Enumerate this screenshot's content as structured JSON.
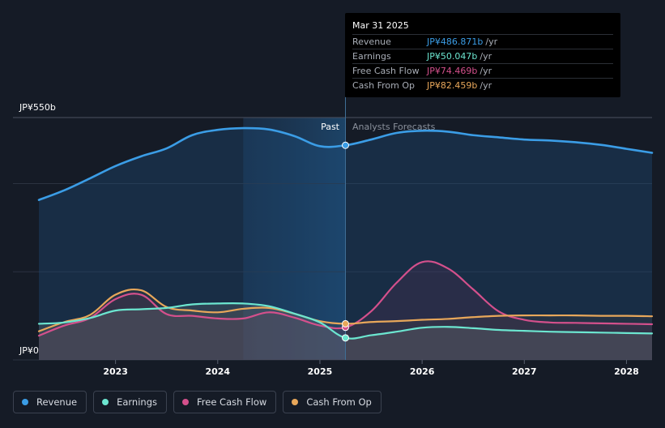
{
  "tooltip": {
    "date": "Mar 31 2025",
    "rows": [
      {
        "label": "Revenue",
        "value": "JP¥486.871b",
        "unit": "/yr",
        "color": "#3b9de6"
      },
      {
        "label": "Earnings",
        "value": "JP¥50.047b",
        "unit": "/yr",
        "color": "#6ce6d0"
      },
      {
        "label": "Free Cash Flow",
        "value": "JP¥74.469b",
        "unit": "/yr",
        "color": "#d4508c"
      },
      {
        "label": "Cash From Op",
        "value": "JP¥82.459b",
        "unit": "/yr",
        "color": "#e8a75a"
      }
    ]
  },
  "labels": {
    "past": "Past",
    "forecast": "Analysts Forecasts"
  },
  "legend": [
    {
      "label": "Revenue",
      "color": "#3b9de6",
      "icon": "revenue-dot-icon"
    },
    {
      "label": "Earnings",
      "color": "#6ce6d0",
      "icon": "earnings-dot-icon"
    },
    {
      "label": "Free Cash Flow",
      "color": "#d4508c",
      "icon": "free-cash-flow-dot-icon"
    },
    {
      "label": "Cash From Op",
      "color": "#e8a75a",
      "icon": "cash-from-op-dot-icon"
    }
  ],
  "chart_data": {
    "type": "line",
    "y_tick_labels": [
      "JP¥550b",
      "JP¥0"
    ],
    "ylim": [
      0,
      550
    ],
    "xlim": [
      2022.25,
      2028.25
    ],
    "x_tick_labels": [
      "2023",
      "2024",
      "2025",
      "2026",
      "2027",
      "2028"
    ],
    "x_ticks": [
      2023,
      2024,
      2025,
      2026,
      2027,
      2028
    ],
    "highlight_range": [
      2024.25,
      2025.25
    ],
    "divider_x": 2025.25,
    "grid": true,
    "legend_position": "bottom-left",
    "series": [
      {
        "name": "Revenue",
        "color": "#3b9de6",
        "fill": true,
        "points": [
          [
            2022.25,
            363
          ],
          [
            2022.5,
            385
          ],
          [
            2022.75,
            412
          ],
          [
            2023.0,
            440
          ],
          [
            2023.25,
            462
          ],
          [
            2023.5,
            480
          ],
          [
            2023.75,
            510
          ],
          [
            2024.0,
            522
          ],
          [
            2024.25,
            526
          ],
          [
            2024.5,
            523
          ],
          [
            2024.75,
            508
          ],
          [
            2025.0,
            485
          ],
          [
            2025.25,
            487
          ],
          [
            2025.5,
            500
          ],
          [
            2025.75,
            515
          ],
          [
            2026.0,
            520
          ],
          [
            2026.25,
            518
          ],
          [
            2026.5,
            510
          ],
          [
            2026.75,
            505
          ],
          [
            2027.0,
            500
          ],
          [
            2027.25,
            498
          ],
          [
            2027.5,
            494
          ],
          [
            2027.75,
            488
          ],
          [
            2028.0,
            479
          ],
          [
            2028.25,
            470
          ]
        ]
      },
      {
        "name": "Earnings",
        "color": "#6ce6d0",
        "fill": true,
        "points": [
          [
            2022.25,
            82
          ],
          [
            2022.5,
            85
          ],
          [
            2022.75,
            95
          ],
          [
            2023.0,
            112
          ],
          [
            2023.25,
            115
          ],
          [
            2023.5,
            118
          ],
          [
            2023.75,
            126
          ],
          [
            2024.0,
            128
          ],
          [
            2024.25,
            128
          ],
          [
            2024.5,
            122
          ],
          [
            2024.75,
            105
          ],
          [
            2025.0,
            85
          ],
          [
            2025.25,
            50
          ],
          [
            2025.5,
            56
          ],
          [
            2025.75,
            64
          ],
          [
            2026.0,
            73
          ],
          [
            2026.25,
            75
          ],
          [
            2026.5,
            72
          ],
          [
            2026.75,
            68
          ],
          [
            2027.0,
            66
          ],
          [
            2027.25,
            64
          ],
          [
            2027.5,
            63
          ],
          [
            2027.75,
            62
          ],
          [
            2028.0,
            61
          ],
          [
            2028.25,
            60
          ]
        ]
      },
      {
        "name": "Free Cash Flow",
        "color": "#d4508c",
        "fill": true,
        "points": [
          [
            2022.25,
            55
          ],
          [
            2022.5,
            78
          ],
          [
            2022.75,
            95
          ],
          [
            2023.0,
            138
          ],
          [
            2023.25,
            148
          ],
          [
            2023.5,
            104
          ],
          [
            2023.75,
            100
          ],
          [
            2024.0,
            94
          ],
          [
            2024.25,
            94
          ],
          [
            2024.5,
            108
          ],
          [
            2024.75,
            96
          ],
          [
            2025.0,
            78
          ],
          [
            2025.25,
            74
          ],
          [
            2025.5,
            110
          ],
          [
            2025.75,
            175
          ],
          [
            2026.0,
            222
          ],
          [
            2026.25,
            208
          ],
          [
            2026.5,
            160
          ],
          [
            2026.75,
            110
          ],
          [
            2027.0,
            91
          ],
          [
            2027.25,
            85
          ],
          [
            2027.5,
            84
          ],
          [
            2027.75,
            83
          ],
          [
            2028.0,
            82
          ],
          [
            2028.25,
            81
          ]
        ]
      },
      {
        "name": "Cash From Op",
        "color": "#e8a75a",
        "fill": true,
        "points": [
          [
            2022.25,
            65
          ],
          [
            2022.5,
            86
          ],
          [
            2022.75,
            102
          ],
          [
            2023.0,
            148
          ],
          [
            2023.25,
            158
          ],
          [
            2023.5,
            120
          ],
          [
            2023.75,
            112
          ],
          [
            2024.0,
            108
          ],
          [
            2024.25,
            116
          ],
          [
            2024.5,
            118
          ],
          [
            2024.75,
            105
          ],
          [
            2025.0,
            88
          ],
          [
            2025.25,
            82
          ],
          [
            2025.5,
            86
          ],
          [
            2025.75,
            88
          ],
          [
            2026.0,
            91
          ],
          [
            2026.25,
            93
          ],
          [
            2026.5,
            97
          ],
          [
            2026.75,
            100
          ],
          [
            2027.0,
            101
          ],
          [
            2027.25,
            101
          ],
          [
            2027.5,
            101
          ],
          [
            2027.75,
            100
          ],
          [
            2028.0,
            100
          ],
          [
            2028.25,
            99
          ]
        ]
      }
    ],
    "markers": [
      {
        "series": "Revenue",
        "x": 2025.25,
        "y": 487
      },
      {
        "series": "Earnings",
        "x": 2025.25,
        "y": 50
      },
      {
        "series": "Free Cash Flow",
        "x": 2025.25,
        "y": 74
      },
      {
        "series": "Cash From Op",
        "x": 2025.25,
        "y": 82
      }
    ]
  }
}
